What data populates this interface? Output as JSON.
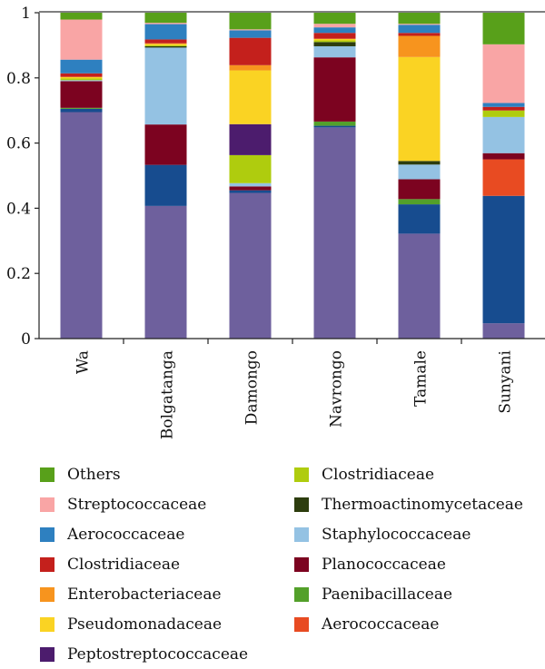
{
  "chart_data": {
    "type": "bar",
    "stacked": true,
    "title": "",
    "xlabel": "",
    "ylabel": "",
    "ylim": [
      0,
      1
    ],
    "yticks": [
      "0",
      "0.2",
      "0.4",
      "0.6",
      "0.8",
      "1"
    ],
    "ytick_values": [
      0,
      0.2,
      0.4,
      0.6,
      0.8,
      1
    ],
    "categories": [
      "Wa",
      "Bolgatanga",
      "Damongo",
      "Navrongo",
      "Tamale",
      "Sunyani"
    ],
    "legend_placement": "bottom",
    "series": [
      {
        "name": "",
        "color": "#6e609d",
        "values": [
          0.695,
          0.407,
          0.447,
          0.648,
          0.322,
          0.047
        ]
      },
      {
        "name": "",
        "color": "#174c8f",
        "values": [
          0.01,
          0.126,
          0.008,
          0.005,
          0.09,
          0.391
        ]
      },
      {
        "name": "Aerococcaceae",
        "color": "#e84b22",
        "values": [
          0,
          0,
          0,
          0,
          0,
          0.112
        ]
      },
      {
        "name": "Paenibacillaceae",
        "color": "#53a02a",
        "values": [
          0.003,
          0,
          0,
          0.013,
          0.016,
          0
        ]
      },
      {
        "name": "Planococcaceae",
        "color": "#7c0320",
        "values": [
          0.082,
          0.124,
          0.012,
          0.197,
          0.061,
          0.019
        ]
      },
      {
        "name": "Staphylococcaceae",
        "color": "#94c2e3",
        "values": [
          0.003,
          0.236,
          0.01,
          0.034,
          0.045,
          0.111
        ]
      },
      {
        "name": "Thermoactinomycetaceae",
        "color": "#2d3d0e",
        "values": [
          0,
          0.004,
          0,
          0.013,
          0.011,
          0
        ]
      },
      {
        "name": "Clostridiaceae",
        "color": "#afcc0e",
        "values": [
          0.005,
          0.003,
          0.086,
          0.005,
          0,
          0.02
        ]
      },
      {
        "name": "Peptostreptococcaceae",
        "color": "#4c1c6d",
        "values": [
          0,
          0,
          0.095,
          0,
          0,
          0
        ]
      },
      {
        "name": "Pseudomonadaceae",
        "color": "#fad323",
        "values": [
          0.005,
          0.004,
          0.165,
          0.005,
          0.319,
          0
        ]
      },
      {
        "name": "Enterobacteriaceae",
        "color": "#f7941e",
        "values": [
          0,
          0.002,
          0.016,
          0,
          0.065,
          0
        ]
      },
      {
        "name": "Clostridiaceae",
        "color": "#c4201c",
        "values": [
          0.011,
          0.012,
          0.084,
          0.018,
          0.009,
          0.011
        ]
      },
      {
        "name": "Aerococcaceae",
        "color": "#2e80c0",
        "values": [
          0.042,
          0.047,
          0.023,
          0.017,
          0.025,
          0.012
        ]
      },
      {
        "name": "Streptococcaceae",
        "color": "#f9a5a5",
        "values": [
          0.123,
          0.004,
          0.003,
          0.011,
          0.003,
          0.18
        ]
      },
      {
        "name": "Others",
        "color": "#58a01a",
        "values": [
          0.021,
          0.031,
          0.051,
          0.034,
          0.034,
          0.097
        ]
      }
    ],
    "legend_left": [
      14,
      13,
      12,
      11,
      10,
      9,
      8
    ],
    "legend_right": [
      7,
      6,
      5,
      4,
      3,
      2
    ]
  }
}
